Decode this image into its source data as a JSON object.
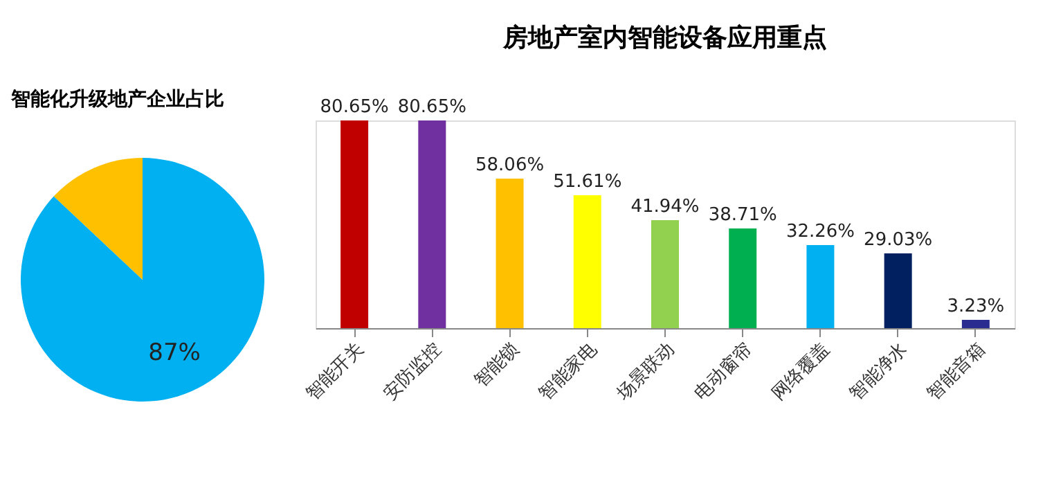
{
  "chart_data": [
    {
      "type": "pie",
      "title": "智能化升级地产企业占比",
      "categories": [
        null,
        null
      ],
      "values": [
        87,
        13
      ],
      "colors": [
        "#00b0f0",
        "#ffc000"
      ],
      "value_labels": [
        "87%",
        null
      ],
      "legend": false
    },
    {
      "type": "bar",
      "title": "房地产室内智能设备应用重点",
      "categories": [
        "智能开关",
        "安防监控",
        "智能锁",
        "智能家电",
        "场景联动",
        "电动窗帘",
        "网络覆盖",
        "智能净水",
        "智能音箱"
      ],
      "values": [
        80.65,
        80.65,
        58.06,
        51.61,
        41.94,
        38.71,
        32.26,
        29.03,
        3.23
      ],
      "colors": [
        "#c00000",
        "#7030a0",
        "#ffc000",
        "#ffff00",
        "#92d050",
        "#00b050",
        "#00b0f0",
        "#002060",
        "#2a2d8f"
      ],
      "value_labels": [
        "80.65%",
        "80.65%",
        "58.06%",
        "51.61%",
        "41.94%",
        "38.71%",
        "32.26%",
        "29.03%",
        "3.23%"
      ],
      "grid": false,
      "legend": false,
      "tick_labels": "x"
    }
  ]
}
